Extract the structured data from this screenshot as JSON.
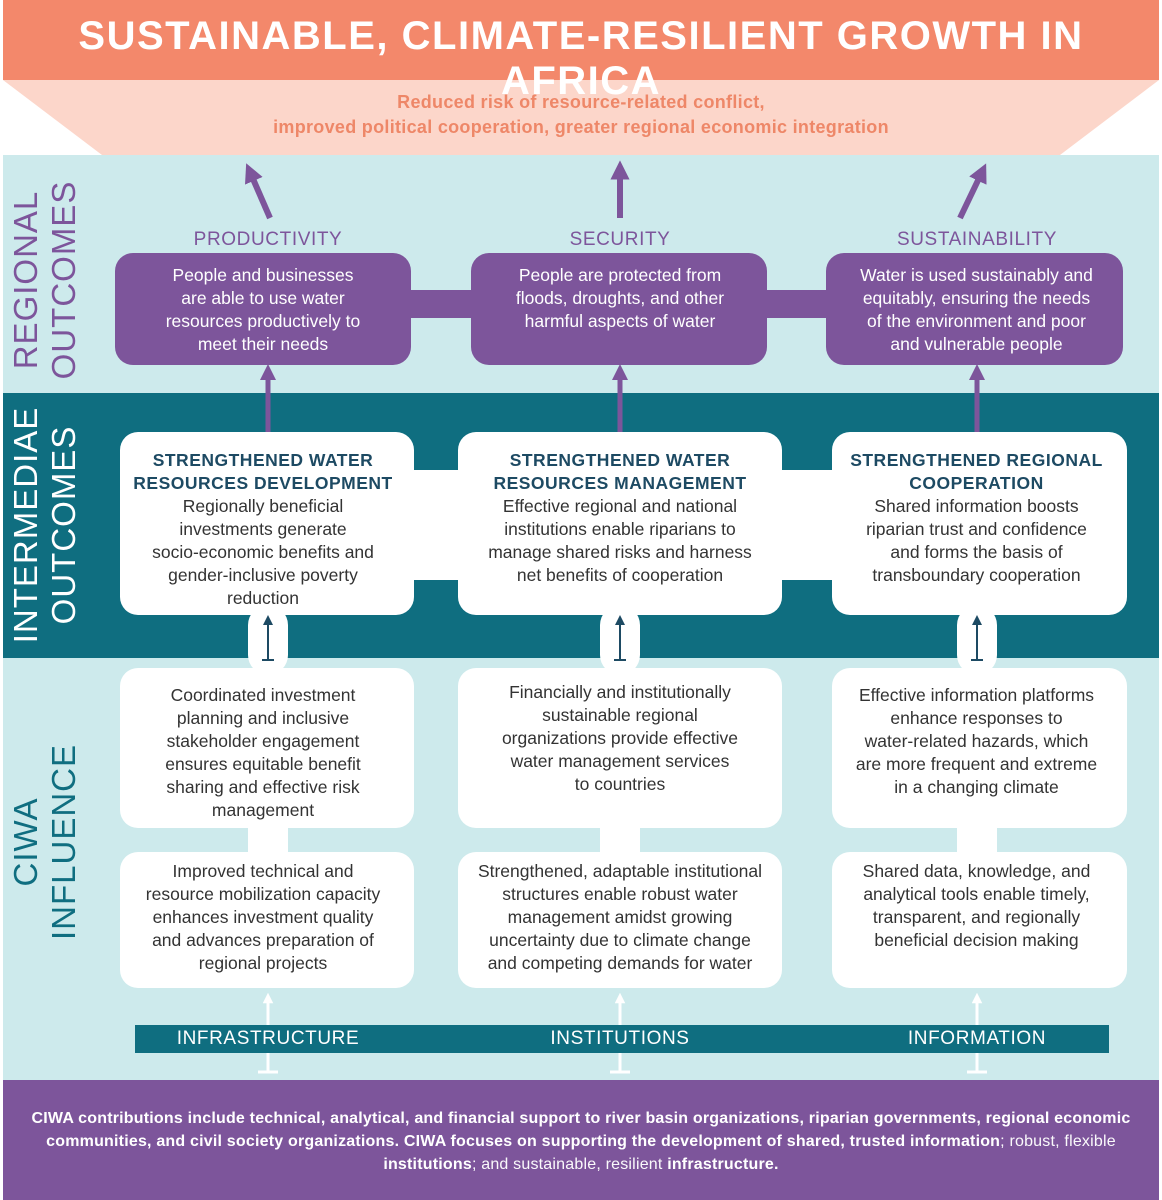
{
  "header": {
    "title": "SUSTAINABLE, CLIMATE-RESILIENT GROWTH IN AFRICA"
  },
  "goal": {
    "lines": [
      "Reduced risk of resource-related conflict,",
      "improved political cooperation, greater regional economic integration"
    ]
  },
  "regional": {
    "label": [
      "REGIONAL",
      "OUTCOMES"
    ],
    "columns": [
      {
        "heading": "PRODUCTIVITY",
        "lines": [
          "People and businesses",
          "are able to use water",
          "resources productively to",
          "meet their needs"
        ]
      },
      {
        "heading": "SECURITY",
        "lines": [
          "People are protected from",
          "floods, droughts, and other",
          "harmful aspects of water"
        ]
      },
      {
        "heading": "SUSTAINABILITY",
        "lines": [
          "Water is used sustainably and",
          "equitably, ensuring the needs",
          "of the environment and poor",
          "and vulnerable people"
        ]
      }
    ]
  },
  "intermediate": {
    "label": [
      "INTERMEDIAE",
      "OUTCOMES"
    ],
    "columns": [
      {
        "title": [
          "STRENGTHENED WATER",
          "RESOURCES DEVELOPMENT"
        ],
        "lines": [
          "Regionally beneficial",
          "investments generate",
          "socio-economic benefits and",
          "gender-inclusive poverty",
          "reduction"
        ]
      },
      {
        "title": [
          "STRENGTHENED WATER",
          "RESOURCES MANAGEMENT"
        ],
        "lines": [
          "Effective regional and national",
          "institutions enable riparians to",
          "manage shared risks and harness",
          "net benefits of cooperation"
        ]
      },
      {
        "title": [
          "STRENGTHENED REGIONAL",
          "COOPERATION"
        ],
        "lines": [
          "Shared information boosts",
          "riparian trust and confidence",
          "and forms the basis of",
          "transboundary cooperation"
        ]
      }
    ]
  },
  "influence": {
    "label": [
      "CIWA",
      "INFLUENCE"
    ],
    "rows": [
      [
        [
          "Coordinated investment",
          "planning and inclusive",
          "stakeholder engagement",
          "ensures equitable benefit",
          "sharing and effective risk",
          "management"
        ],
        [
          "Financially and institutionally",
          "sustainable regional",
          "organizations provide effective",
          "water management services",
          "to countries"
        ],
        [
          "Effective information platforms",
          "enhance responses to",
          "water-related hazards, which",
          "are more frequent and extreme",
          "in a changing climate"
        ]
      ],
      [
        [
          "Improved technical and",
          "resource mobilization capacity",
          "enhances investment quality",
          "and advances preparation of",
          "regional projects"
        ],
        [
          "Strengthened, adaptable institutional",
          "structures enable robust water",
          "management amidst growing",
          "uncertainty due to climate change",
          "and competing demands for water"
        ],
        [
          "Shared data, knowledge, and",
          "analytical tools enable timely,",
          "transparent, and regionally",
          "beneficial decision making"
        ]
      ]
    ]
  },
  "pillars": [
    "INFRASTRUCTURE",
    "INSTITUTIONS",
    "INFORMATION"
  ],
  "footer": {
    "segments": [
      "CIWA contributions include technical, analytical, and financial support to river basin organizations, riparian governments, regional economic communities, and civil society organizations. CIWA focuses on supporting the development of shared, trusted ",
      "information",
      "; robust, flexible ",
      "institutions",
      "; and sustainable, resilient ",
      "infrastructure",
      "."
    ]
  }
}
